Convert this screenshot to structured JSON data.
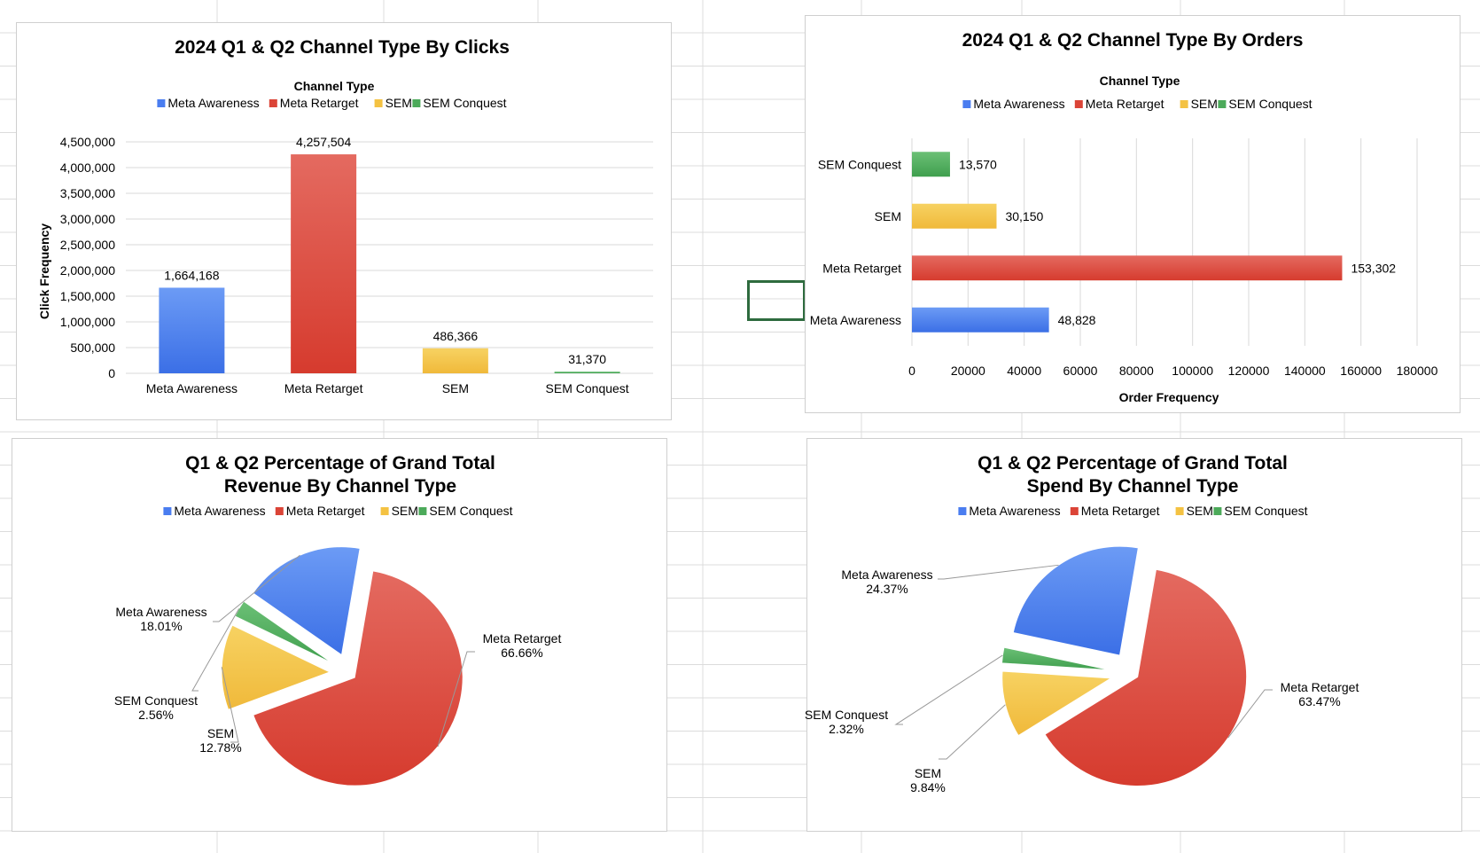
{
  "colors": {
    "meta_awareness": "#4a7df0",
    "meta_retarget": "#db4437",
    "sem": "#f4c242",
    "sem_conquest": "#4caa5a",
    "gridline": "#d9d9d9",
    "selection": "#2e6b3e"
  },
  "chart_data": [
    {
      "type": "bar",
      "title": "2024 Q1 & Q2 Channel Type By Clicks",
      "legend_title": "Channel Type",
      "legend_position": "top",
      "legend": [
        "Meta Awareness",
        "Meta Retarget",
        "SEM",
        "SEM Conquest"
      ],
      "categories": [
        "Meta Awareness",
        "Meta Retarget",
        "SEM",
        "SEM Conquest"
      ],
      "values": [
        1664168,
        4257504,
        486366,
        31370
      ],
      "data_labels": [
        "1,664,168",
        "4,257,504",
        "486,366",
        "31,370"
      ],
      "ylabel": "Click Frequency",
      "xlabel": "",
      "ylim": [
        0,
        4500000
      ],
      "yticks": [
        0,
        500000,
        1000000,
        1500000,
        2000000,
        2500000,
        3000000,
        3500000,
        4000000,
        4500000
      ],
      "ytick_labels": [
        "0",
        "500,000",
        "1,000,000",
        "1,500,000",
        "2,000,000",
        "2,500,000",
        "3,000,000",
        "3,500,000",
        "4,000,000",
        "4,500,000"
      ],
      "grid": true
    },
    {
      "type": "bar",
      "orientation": "horizontal",
      "title": "2024 Q1 & Q2 Channel Type By Orders",
      "legend_title": "Channel Type",
      "legend_position": "top",
      "legend": [
        "Meta Awareness",
        "Meta Retarget",
        "SEM",
        "SEM Conquest"
      ],
      "categories": [
        "SEM Conquest",
        "SEM",
        "Meta Retarget",
        "Meta Awareness"
      ],
      "values": [
        13570,
        30150,
        153302,
        48828
      ],
      "data_labels": [
        "13,570",
        "30,150",
        "153,302",
        "48,828"
      ],
      "xlabel": "Order Frequency",
      "ylabel": "",
      "xlim": [
        0,
        180000
      ],
      "xticks": [
        0,
        20000,
        40000,
        60000,
        80000,
        100000,
        120000,
        140000,
        160000,
        180000
      ],
      "xtick_labels": [
        "0",
        "20000",
        "40000",
        "60000",
        "80000",
        "100000",
        "120000",
        "140000",
        "160000",
        "180000"
      ],
      "grid": true
    },
    {
      "type": "pie",
      "title_lines": [
        "Q1 & Q2 Percentage of Grand Total",
        "Revenue By Channel Type"
      ],
      "legend_position": "top",
      "legend": [
        "Meta Awareness",
        "Meta Retarget",
        "SEM",
        "SEM Conquest"
      ],
      "slices": [
        {
          "label": "Meta Retarget",
          "value": 66.66,
          "pct": "66.66%"
        },
        {
          "label": "SEM",
          "value": 12.78,
          "pct": "12.78%"
        },
        {
          "label": "SEM Conquest",
          "value": 2.56,
          "pct": "2.56%"
        },
        {
          "label": "Meta Awareness",
          "value": 18.01,
          "pct": "18.01%"
        }
      ],
      "exploded": true
    },
    {
      "type": "pie",
      "title_lines": [
        "Q1 & Q2 Percentage of Grand Total",
        "Spend By Channel Type"
      ],
      "legend_position": "top",
      "legend": [
        "Meta Awareness",
        "Meta Retarget",
        "SEM",
        "SEM Conquest"
      ],
      "slices": [
        {
          "label": "Meta Retarget",
          "value": 63.47,
          "pct": "63.47%"
        },
        {
          "label": "SEM",
          "value": 9.84,
          "pct": "9.84%"
        },
        {
          "label": "SEM Conquest",
          "value": 2.32,
          "pct": "2.32%"
        },
        {
          "label": "Meta Awareness",
          "value": 24.37,
          "pct": "24.37%"
        }
      ],
      "exploded": true
    }
  ]
}
